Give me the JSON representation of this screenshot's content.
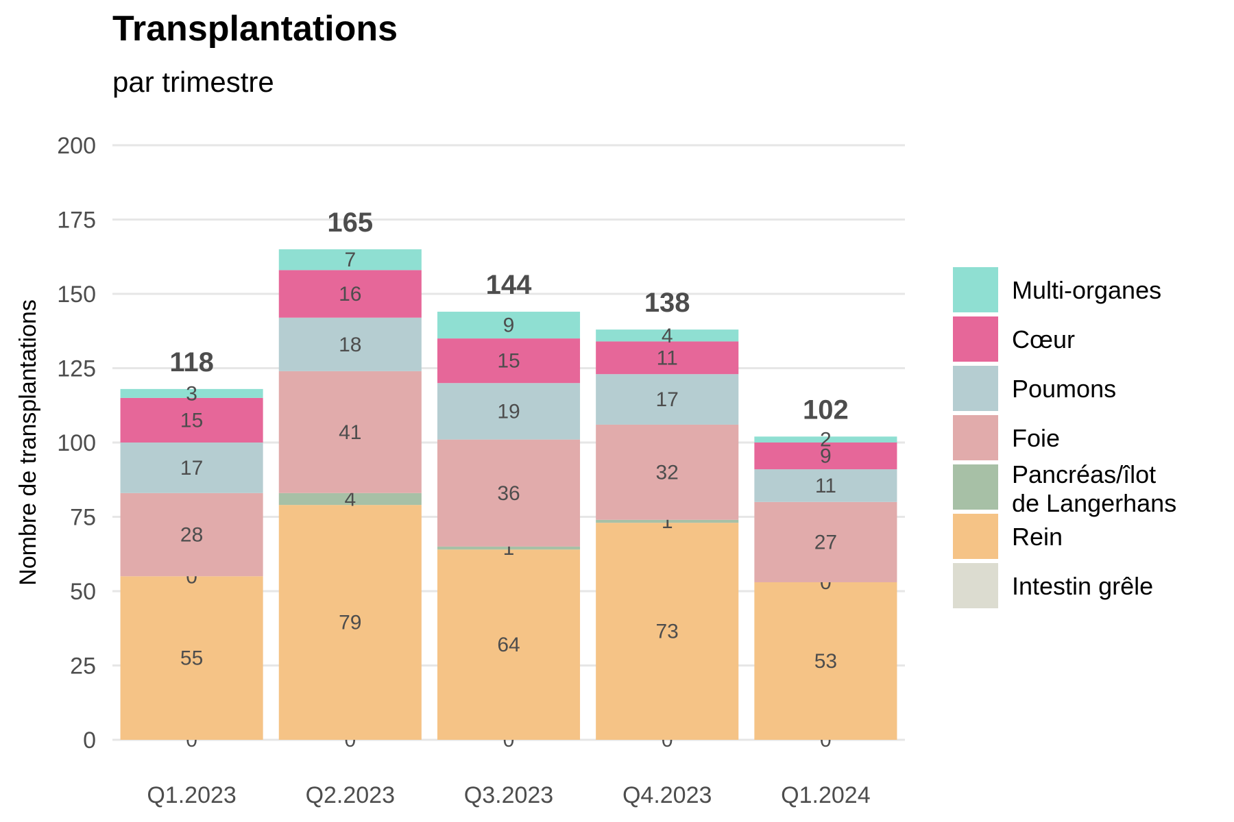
{
  "chart_data": {
    "type": "bar",
    "stacked": true,
    "title": "Transplantations",
    "subtitle": "par trimestre",
    "xlabel": "",
    "ylabel": "Nombre de transplantations",
    "ylim": [
      0,
      200
    ],
    "yticks": [
      0,
      25,
      50,
      75,
      100,
      125,
      150,
      175,
      200
    ],
    "grid": true,
    "legend_position": "right",
    "categories": [
      "Q1.2023",
      "Q2.2023",
      "Q3.2023",
      "Q4.2023",
      "Q1.2024"
    ],
    "totals": [
      118,
      165,
      144,
      138,
      102
    ],
    "series": [
      {
        "name": "Intestin grêle",
        "color": "#dcdcd0",
        "values": [
          0,
          0,
          0,
          0,
          0
        ]
      },
      {
        "name": "Rein",
        "color": "#f5c386",
        "values": [
          55,
          79,
          64,
          73,
          53
        ]
      },
      {
        "name": "Pancréas/îlot de Langerhans",
        "color": "#a7c0a6",
        "values": [
          0,
          4,
          1,
          1,
          0
        ]
      },
      {
        "name": "Foie",
        "color": "#e1abab",
        "values": [
          28,
          41,
          36,
          32,
          27
        ]
      },
      {
        "name": "Poumons",
        "color": "#b5cdd1",
        "values": [
          17,
          18,
          19,
          17,
          11
        ]
      },
      {
        "name": "Cœur",
        "color": "#e66799",
        "values": [
          15,
          16,
          15,
          11,
          9
        ]
      },
      {
        "name": "Multi-organes",
        "color": "#8fdfd2",
        "values": [
          3,
          7,
          9,
          4,
          2
        ]
      }
    ],
    "legend": {
      "order": [
        "Multi-organes",
        "Cœur",
        "Poumons",
        "Foie",
        "Pancréas/îlot de Langerhans",
        "Rein",
        "Intestin grêle"
      ],
      "lines": {
        "Pancréas/îlot de Langerhans": [
          "Pancréas/îlot",
          "de Langerhans"
        ]
      }
    }
  }
}
